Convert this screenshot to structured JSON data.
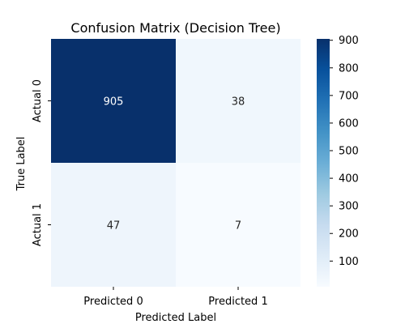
{
  "chart_data": {
    "type": "heatmap",
    "title": "Confusion Matrix (Decision Tree)",
    "xlabel": "Predicted Label",
    "ylabel": "True Label",
    "x_categories": [
      "Predicted 0",
      "Predicted 1"
    ],
    "y_categories": [
      "Actual 0",
      "Actual 1"
    ],
    "values": [
      [
        905,
        38
      ],
      [
        47,
        7
      ]
    ],
    "colormap": "Blues",
    "colorbar": {
      "range": [
        7,
        905
      ],
      "ticks": [
        100,
        200,
        300,
        400,
        500,
        600,
        700,
        800,
        900
      ]
    },
    "grid": false
  }
}
